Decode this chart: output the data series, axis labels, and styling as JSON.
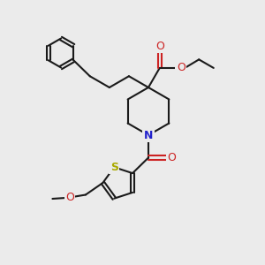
{
  "background_color": "#ebebeb",
  "bond_color": "#1a1a1a",
  "nitrogen_color": "#2222cc",
  "oxygen_color": "#cc2222",
  "sulfur_color": "#aaaa00",
  "line_width": 1.5,
  "figsize": [
    3.0,
    3.0
  ],
  "dpi": 100,
  "xlim": [
    0,
    10
  ],
  "ylim": [
    0,
    10
  ]
}
